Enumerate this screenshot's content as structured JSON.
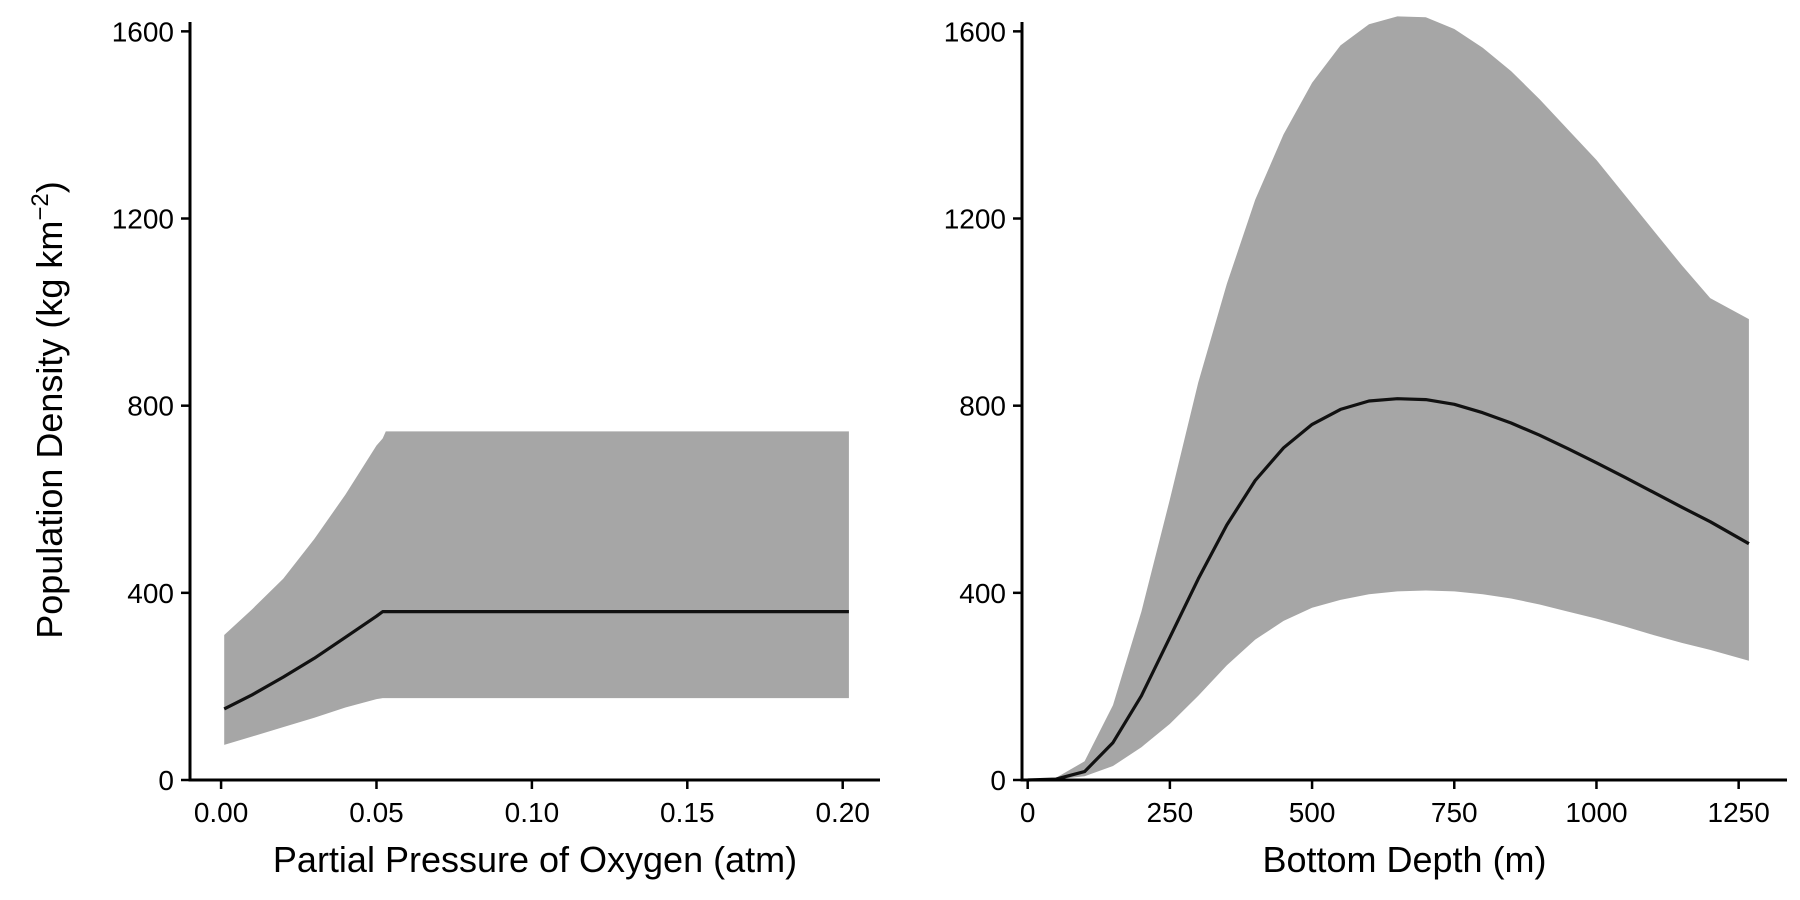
{
  "ylabel": {
    "prefix": "Population Density (kg km",
    "superscript": "−2",
    "suffix": ")"
  },
  "chart_data": [
    {
      "type": "area",
      "xlabel": "Partial Pressure of Oxygen (atm)",
      "xlim": [
        -0.01,
        0.212
      ],
      "ylim": [
        0,
        1620
      ],
      "x_ticks": [
        {
          "value": 0.0,
          "label": "0.00"
        },
        {
          "value": 0.05,
          "label": "0.05"
        },
        {
          "value": 0.1,
          "label": "0.10"
        },
        {
          "value": 0.15,
          "label": "0.15"
        },
        {
          "value": 0.2,
          "label": "0.20"
        }
      ],
      "y_ticks": [
        {
          "value": 0,
          "label": "0"
        },
        {
          "value": 400,
          "label": "400"
        },
        {
          "value": 800,
          "label": "800"
        },
        {
          "value": 1200,
          "label": "1200"
        },
        {
          "value": 1600,
          "label": "1600"
        }
      ],
      "grid": false,
      "series": [
        {
          "role": "ribbon",
          "color": "#a6a6a6",
          "x": [
            0.001,
            0.01,
            0.02,
            0.03,
            0.04,
            0.05,
            0.052,
            0.053,
            0.1,
            0.15,
            0.202
          ],
          "upper": [
            310,
            365,
            430,
            515,
            610,
            715,
            730,
            745,
            745,
            745,
            745
          ],
          "lower": [
            75,
            93,
            113,
            133,
            155,
            173,
            175,
            175,
            175,
            175,
            175
          ]
        },
        {
          "role": "estimate",
          "color": "#111111",
          "x": [
            0.001,
            0.01,
            0.02,
            0.03,
            0.04,
            0.05,
            0.052,
            0.1,
            0.15,
            0.202
          ],
          "values": [
            152,
            182,
            220,
            260,
            305,
            350,
            360,
            360,
            360,
            360
          ]
        }
      ]
    },
    {
      "type": "area",
      "xlabel": "Bottom Depth (m)",
      "xlim": [
        -10,
        1335
      ],
      "ylim": [
        0,
        1620
      ],
      "x_ticks": [
        {
          "value": 0,
          "label": "0"
        },
        {
          "value": 250,
          "label": "250"
        },
        {
          "value": 500,
          "label": "500"
        },
        {
          "value": 750,
          "label": "750"
        },
        {
          "value": 1000,
          "label": "1000"
        },
        {
          "value": 1250,
          "label": "1250"
        }
      ],
      "y_ticks": [
        {
          "value": 0,
          "label": "0"
        },
        {
          "value": 400,
          "label": "400"
        },
        {
          "value": 800,
          "label": "800"
        },
        {
          "value": 1200,
          "label": "1200"
        },
        {
          "value": 1600,
          "label": "1600"
        }
      ],
      "grid": false,
      "series": [
        {
          "role": "ribbon",
          "color": "#a6a6a6",
          "x": [
            0,
            50,
            100,
            150,
            200,
            250,
            300,
            350,
            400,
            450,
            500,
            550,
            600,
            650,
            700,
            750,
            800,
            850,
            900,
            950,
            1000,
            1050,
            1100,
            1150,
            1200,
            1268
          ],
          "upper": [
            0,
            5,
            40,
            160,
            360,
            600,
            850,
            1060,
            1240,
            1380,
            1490,
            1570,
            1615,
            1632,
            1630,
            1605,
            1565,
            1515,
            1455,
            1390,
            1325,
            1250,
            1175,
            1100,
            1030,
            985
          ],
          "lower": [
            0,
            1,
            8,
            30,
            70,
            120,
            180,
            245,
            300,
            340,
            368,
            385,
            397,
            403,
            405,
            403,
            397,
            388,
            375,
            360,
            345,
            328,
            310,
            293,
            278,
            255
          ]
        },
        {
          "role": "estimate",
          "color": "#111111",
          "x": [
            0,
            50,
            100,
            150,
            200,
            250,
            300,
            350,
            400,
            450,
            500,
            550,
            600,
            650,
            700,
            750,
            800,
            850,
            900,
            950,
            1000,
            1050,
            1100,
            1150,
            1200,
            1268
          ],
          "values": [
            0,
            2,
            18,
            80,
            180,
            305,
            430,
            545,
            640,
            710,
            760,
            792,
            810,
            815,
            813,
            803,
            785,
            763,
            737,
            708,
            678,
            647,
            615,
            583,
            552,
            505
          ]
        }
      ]
    }
  ]
}
